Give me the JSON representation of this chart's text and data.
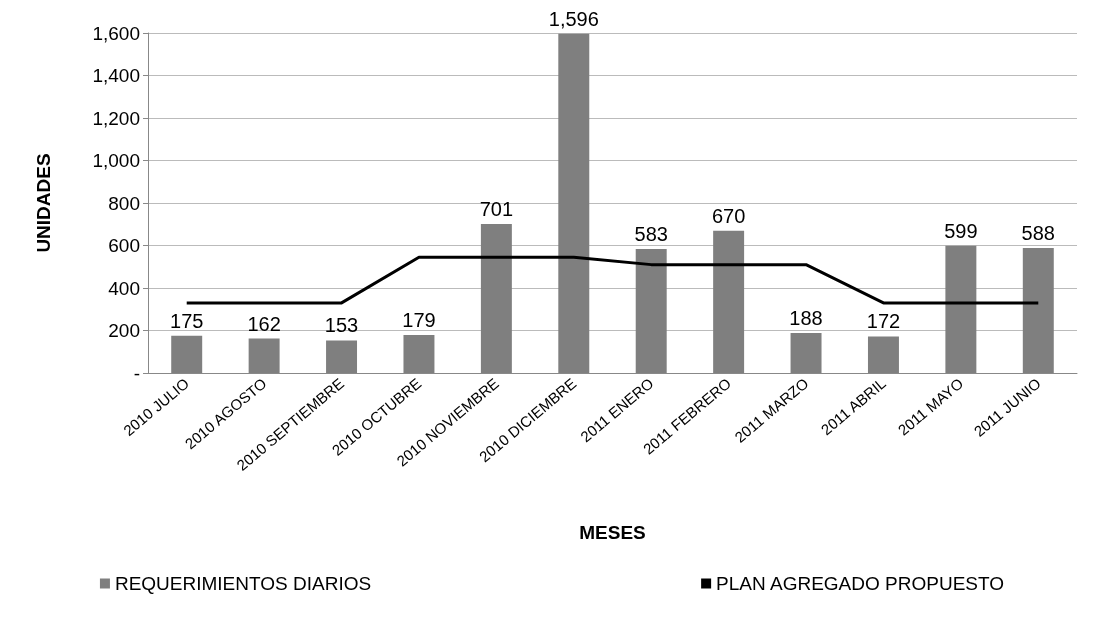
{
  "chart_data": {
    "type": "bar",
    "xlabel": "MESES",
    "ylabel": "UNIDADES",
    "categories": [
      "2010 JULIO",
      "2010 AGOSTO",
      "2010 SEPTIEMBRE",
      "2010 OCTUBRE",
      "2010 NOVIEMBRE",
      "2010 DICIEMBRE",
      "2011 ENERO",
      "2011 FEBRERO",
      "2011 MARZO",
      "2011 ABRIL",
      "2011 MAYO",
      "2011 JUNIO"
    ],
    "series": [
      {
        "name": "REQUERIMIENTOS DIARIOS",
        "color": "#7f7f7f",
        "values": [
          175,
          162,
          153,
          179,
          701,
          1596,
          583,
          670,
          188,
          172,
          599,
          588
        ],
        "value_labels": [
          "175",
          "162",
          "153",
          "179",
          "701",
          "1,596",
          "583",
          "670",
          "188",
          "172",
          "599",
          "588"
        ]
      },
      {
        "name": "PLAN AGREGADO PROPUESTO",
        "type": "line",
        "color": "#000000",
        "values": [
          330,
          330,
          330,
          545,
          545,
          545,
          510,
          510,
          510,
          330,
          330,
          330
        ],
        "marker": "none"
      }
    ],
    "ylim": [
      0,
      1600
    ],
    "yticks": [
      {
        "value": 0,
        "label": "-"
      },
      200,
      400,
      600,
      800,
      {
        "value": 1000,
        "label": "1,000"
      },
      {
        "value": 1200,
        "label": "1,200"
      },
      {
        "value": 1400,
        "label": "1,400"
      },
      {
        "value": 1600,
        "label": "1,600"
      }
    ],
    "grid": "y",
    "legend": "bottom"
  }
}
